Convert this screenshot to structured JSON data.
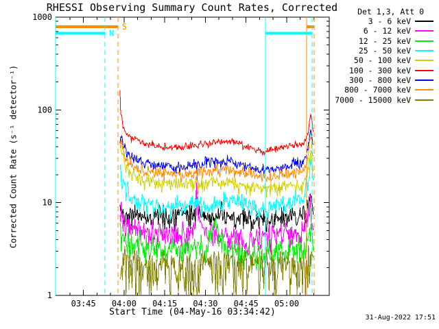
{
  "timestamp": "31-Aug-2022 17:51",
  "legend": {
    "title": "Det 1,3, Att 0"
  },
  "chart_data": {
    "type": "line",
    "title": "RHESSI Observing Summary Count Rates, Corrected",
    "xlabel": "Start Time (04-May-16 03:34:42)",
    "ylabel": "Corrected Count Rate (s⁻¹ detector⁻¹)",
    "x_unit": "minutes after 03:34:42",
    "xlim": [
      0,
      101
    ],
    "ylim": [
      1,
      1000
    ],
    "yscale": "log",
    "grid": false,
    "legend_position": "outside-top-right",
    "xticks": [
      {
        "t": 10.3,
        "label": "03:45"
      },
      {
        "t": 25.3,
        "label": "04:00"
      },
      {
        "t": 40.3,
        "label": "04:15"
      },
      {
        "t": 55.3,
        "label": "04:30"
      },
      {
        "t": 70.3,
        "label": "04:45"
      },
      {
        "t": 85.3,
        "label": "05:00"
      }
    ],
    "xtick_minor_interval": 5,
    "yticks": [
      {
        "v": 1000,
        "label": "1000"
      },
      {
        "v": 100,
        "label": "100"
      },
      {
        "v": 10,
        "label": "10"
      },
      {
        "v": 1,
        "label": "1"
      }
    ],
    "flags": [
      {
        "name": "S",
        "color": "#ff8c00",
        "level": 790,
        "segments": [
          {
            "start": 0,
            "end": 23.0
          },
          {
            "start": 92.7,
            "end": 95.4
          }
        ],
        "label_after_segment": 0
      },
      {
        "name": "N",
        "color": "#00ffff",
        "level": 670,
        "segments": [
          {
            "start": 0,
            "end": 18.2
          },
          {
            "start": 77.5,
            "end": 94.7
          }
        ],
        "label_after_segment": 0
      }
    ],
    "series": [
      {
        "name": "3 - 6 keV",
        "color": "#000000",
        "sigma": 0.1,
        "asym": 0.9,
        "anchors": [
          [
            23.8,
            8.5
          ],
          [
            25,
            7.8
          ],
          [
            30,
            7.2
          ],
          [
            35,
            7.0
          ],
          [
            40,
            7.0
          ],
          [
            45,
            7.0
          ],
          [
            50,
            7.4
          ],
          [
            51.5,
            8.0
          ],
          [
            52.1,
            12.0
          ],
          [
            52.8,
            8.0
          ],
          [
            55,
            7.2
          ],
          [
            60,
            7.0
          ],
          [
            65,
            6.8
          ],
          [
            70,
            6.6
          ],
          [
            75,
            6.5
          ],
          [
            80,
            6.6
          ],
          [
            85,
            6.9
          ],
          [
            89,
            7.0
          ],
          [
            91.5,
            7.2
          ],
          [
            93,
            8.5
          ],
          [
            94,
            11.0
          ],
          [
            95.2,
            7.5
          ]
        ]
      },
      {
        "name": "6 - 12 keV",
        "color": "#ff00ff",
        "sigma": 0.12,
        "asym": 0.8,
        "anchors": [
          [
            23.8,
            7.5
          ],
          [
            25,
            6.2
          ],
          [
            28,
            5.5
          ],
          [
            32,
            5.0
          ],
          [
            36,
            4.8
          ],
          [
            40,
            4.6
          ],
          [
            45,
            4.5
          ],
          [
            50,
            4.9
          ],
          [
            51.9,
            6.0
          ],
          [
            52.2,
            26.0
          ],
          [
            52.6,
            7.0
          ],
          [
            55,
            4.8
          ],
          [
            60,
            4.6
          ],
          [
            65,
            4.4
          ],
          [
            70,
            4.2
          ],
          [
            75,
            4.1
          ],
          [
            80,
            4.2
          ],
          [
            85,
            4.4
          ],
          [
            89,
            4.6
          ],
          [
            91.5,
            4.9
          ],
          [
            93,
            6.5
          ],
          [
            94,
            9.5
          ],
          [
            95.2,
            6.0
          ]
        ]
      },
      {
        "name": "12 - 25 keV",
        "color": "#00ee00",
        "sigma": 0.13,
        "asym": 0.8,
        "anchors": [
          [
            23.8,
            4.6
          ],
          [
            25,
            4.1
          ],
          [
            28,
            3.7
          ],
          [
            32,
            3.4
          ],
          [
            36,
            3.2
          ],
          [
            40,
            3.1
          ],
          [
            45,
            3.0
          ],
          [
            50,
            3.2
          ],
          [
            55,
            3.4
          ],
          [
            58,
            4.5
          ],
          [
            59,
            7.5
          ],
          [
            60,
            4.5
          ],
          [
            61,
            3.6
          ],
          [
            65,
            3.1
          ],
          [
            70,
            2.9
          ],
          [
            75,
            2.8
          ],
          [
            80,
            2.9
          ],
          [
            85,
            3.0
          ],
          [
            89,
            3.1
          ],
          [
            91.5,
            3.3
          ],
          [
            93,
            4.2
          ],
          [
            94,
            5.5
          ],
          [
            95.2,
            3.6
          ]
        ]
      },
      {
        "name": "25 - 50 keV",
        "color": "#00ffff",
        "sigma": 0.09,
        "asym": 0.85,
        "anchors": [
          [
            23.8,
            24
          ],
          [
            24.5,
            18
          ],
          [
            26,
            13.5
          ],
          [
            28,
            11.5
          ],
          [
            31,
            10.2
          ],
          [
            35,
            9.5
          ],
          [
            40,
            9.0
          ],
          [
            45,
            8.8
          ],
          [
            50,
            9.2
          ],
          [
            52,
            10.0
          ],
          [
            55,
            9.2
          ],
          [
            60,
            9.6
          ],
          [
            64,
            11.0
          ],
          [
            68,
            10.5
          ],
          [
            71,
            9.0
          ],
          [
            75,
            8.6
          ],
          [
            79,
            9.0
          ],
          [
            83,
            9.5
          ],
          [
            86,
            10.0
          ],
          [
            89,
            10.0
          ],
          [
            91.5,
            11.0
          ],
          [
            93,
            16.0
          ],
          [
            94,
            26.0
          ],
          [
            94.7,
            22.0
          ],
          [
            95.2,
            14.0
          ]
        ]
      },
      {
        "name": "50 - 100 keV",
        "color": "#d2d200",
        "sigma": 0.075,
        "asym": 0.6,
        "anchors": [
          [
            23.8,
            40
          ],
          [
            24.5,
            34
          ],
          [
            26,
            24
          ],
          [
            28,
            20
          ],
          [
            31,
            18
          ],
          [
            35,
            17
          ],
          [
            40,
            16.5
          ],
          [
            45,
            16
          ],
          [
            50,
            16
          ],
          [
            55,
            16.5
          ],
          [
            60,
            16.5
          ],
          [
            65,
            16
          ],
          [
            70,
            15
          ],
          [
            75,
            14.5
          ],
          [
            80,
            14.5
          ],
          [
            85,
            15
          ],
          [
            89,
            15.5
          ],
          [
            91.5,
            16
          ],
          [
            93,
            22
          ],
          [
            94,
            35
          ],
          [
            94.7,
            30
          ],
          [
            95.2,
            20
          ]
        ]
      },
      {
        "name": "100 - 300 keV",
        "color": "#ff0000",
        "sigma": 0.03,
        "asym": 1,
        "anchors": [
          [
            23.8,
            160
          ],
          [
            24.0,
            80
          ],
          [
            24.3,
            95
          ],
          [
            24.8,
            66
          ],
          [
            26,
            56
          ],
          [
            28,
            50
          ],
          [
            31,
            45
          ],
          [
            35,
            42
          ],
          [
            40,
            40
          ],
          [
            45,
            39
          ],
          [
            50,
            41
          ],
          [
            55,
            43
          ],
          [
            60,
            45
          ],
          [
            64,
            46
          ],
          [
            67,
            43
          ],
          [
            71,
            39
          ],
          [
            75,
            36
          ],
          [
            78,
            36
          ],
          [
            82,
            38
          ],
          [
            86,
            41
          ],
          [
            89,
            42
          ],
          [
            91.5,
            43
          ],
          [
            93,
            55
          ],
          [
            94,
            85
          ],
          [
            94.7,
            80
          ],
          [
            95.2,
            50
          ]
        ]
      },
      {
        "name": "300 - 800 keV",
        "color": "#0000ff",
        "sigma": 0.045,
        "asym": 1,
        "anchors": [
          [
            23.8,
            42
          ],
          [
            24.2,
            56
          ],
          [
            25,
            42
          ],
          [
            26,
            35
          ],
          [
            28,
            31
          ],
          [
            31,
            28
          ],
          [
            35,
            26
          ],
          [
            40,
            24.5
          ],
          [
            45,
            24
          ],
          [
            50,
            25
          ],
          [
            55,
            26.5
          ],
          [
            60,
            27.5
          ],
          [
            64,
            28
          ],
          [
            67,
            26.5
          ],
          [
            71,
            24.5
          ],
          [
            75,
            23
          ],
          [
            78,
            22.5
          ],
          [
            82,
            23.5
          ],
          [
            86,
            25
          ],
          [
            89,
            26
          ],
          [
            91.5,
            27
          ],
          [
            93,
            38
          ],
          [
            94,
            60
          ],
          [
            94.7,
            55
          ],
          [
            95.2,
            35
          ]
        ]
      },
      {
        "name": "800 - 7000 keV",
        "color": "#ff8c00",
        "sigma": 0.05,
        "asym": 1,
        "anchors": [
          [
            23.8,
            36
          ],
          [
            24.2,
            46
          ],
          [
            25,
            34
          ],
          [
            26,
            28
          ],
          [
            28,
            25
          ],
          [
            31,
            23
          ],
          [
            35,
            21.5
          ],
          [
            40,
            20.5
          ],
          [
            45,
            20
          ],
          [
            50,
            20.5
          ],
          [
            55,
            21.5
          ],
          [
            60,
            22
          ],
          [
            64,
            22.5
          ],
          [
            67,
            21.5
          ],
          [
            71,
            20.5
          ],
          [
            75,
            19.5
          ],
          [
            78,
            19.5
          ],
          [
            82,
            20
          ],
          [
            86,
            21
          ],
          [
            89,
            21.5
          ],
          [
            91.5,
            22
          ],
          [
            93,
            30
          ],
          [
            94,
            48
          ],
          [
            94.7,
            42
          ],
          [
            95.2,
            28
          ]
        ]
      },
      {
        "name": "7000 - 15000 keV",
        "color": "#808000",
        "sigma": 0.32,
        "asym": 0.3,
        "anchors": [
          [
            23.8,
            2.6
          ],
          [
            30,
            2.3
          ],
          [
            40,
            2.2
          ],
          [
            50,
            2.2
          ],
          [
            60,
            2.3
          ],
          [
            70,
            2.2
          ],
          [
            80,
            2.2
          ],
          [
            89,
            2.2
          ],
          [
            92,
            2.4
          ],
          [
            94,
            2.8
          ],
          [
            95.2,
            2.5
          ]
        ]
      }
    ]
  }
}
